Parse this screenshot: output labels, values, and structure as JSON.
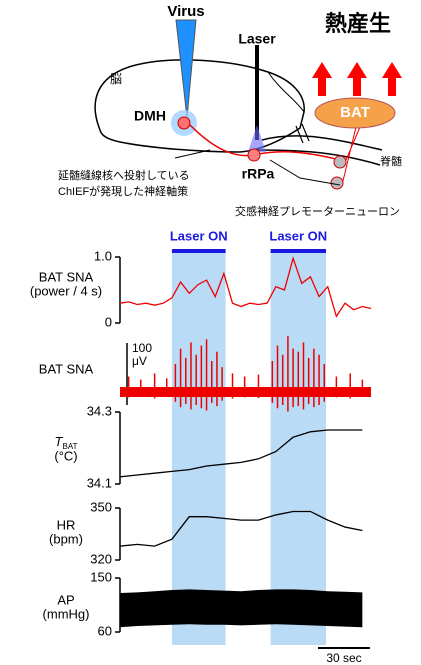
{
  "diagram": {
    "virus": "Virus",
    "laser": "Laser",
    "heat": "熱産生",
    "brain": "脳",
    "dmh": "DMH",
    "bat": "BAT",
    "rrpa": "rRPa",
    "spinal_cord": "脊髄",
    "axon_note": [
      "延髄縫線核へ投射している",
      "ChIEFが発現した神経軸策"
    ],
    "neuron_note": "交感神経プレモーターニューロン"
  },
  "traces": {
    "xlim": [
      0,
      145
    ],
    "laser_label": "Laser ON",
    "laser_on": [
      [
        30,
        61
      ],
      [
        87,
        119
      ]
    ],
    "time_scale": {
      "value": 30,
      "label": "30 sec"
    },
    "panels": [
      {
        "label": [
          "BAT SNA",
          "(power / 4 s)"
        ],
        "ylim": [
          0,
          1
        ],
        "yticks": [
          {
            "value": 1,
            "label": "1.0"
          },
          0
        ],
        "x": [
          0,
          5,
          10,
          15,
          20,
          25,
          30,
          35,
          40,
          45,
          50,
          55,
          60,
          65,
          70,
          75,
          80,
          85,
          90,
          95,
          100,
          105,
          110,
          115,
          120,
          125,
          130,
          135,
          140,
          145
        ],
        "values": [
          0.3,
          0.32,
          0.28,
          0.3,
          0.27,
          0.3,
          0.38,
          0.62,
          0.45,
          0.58,
          0.65,
          0.4,
          0.75,
          0.3,
          0.25,
          0.3,
          0.28,
          0.3,
          0.55,
          0.5,
          0.98,
          0.6,
          0.7,
          0.4,
          0.55,
          0.1,
          0.3,
          0.2,
          0.25,
          0.22
        ]
      },
      {
        "label": [
          "BAT SNA"
        ],
        "scale": {
          "value": 100,
          "label": [
            "100",
            "μV"
          ]
        },
        "x": [
          5,
          12,
          20,
          27,
          32,
          35,
          38,
          41,
          44,
          47,
          50,
          53,
          56,
          59,
          65,
          72,
          80,
          88,
          91,
          94,
          97,
          100,
          103,
          106,
          109,
          112,
          115,
          118,
          125,
          133,
          140
        ],
        "values": [
          25,
          20,
          30,
          22,
          45,
          70,
          55,
          80,
          60,
          75,
          85,
          50,
          65,
          40,
          30,
          25,
          28,
          50,
          75,
          60,
          90,
          70,
          65,
          80,
          55,
          70,
          60,
          45,
          25,
          30,
          20
        ]
      },
      {
        "label": [
          {
            "symbol": "T",
            "subscript": "BAT"
          },
          "(°C)"
        ],
        "ylim": [
          34.1,
          34.3
        ],
        "yticks": [
          34.3,
          34.1
        ],
        "x": [
          0,
          10,
          20,
          30,
          40,
          50,
          60,
          70,
          80,
          90,
          100,
          110,
          120,
          130,
          140
        ],
        "values": [
          34.12,
          34.125,
          34.13,
          34.135,
          34.14,
          34.15,
          34.155,
          34.16,
          34.17,
          34.19,
          34.23,
          34.245,
          34.25,
          34.25,
          34.25
        ]
      },
      {
        "label": [
          "HR",
          "(bpm)"
        ],
        "ylim": [
          320,
          350
        ],
        "yticks": [
          350,
          320
        ],
        "x": [
          0,
          10,
          20,
          30,
          40,
          50,
          60,
          70,
          80,
          90,
          100,
          110,
          120,
          130,
          140
        ],
        "values": [
          328,
          329,
          328,
          332,
          345,
          345,
          344,
          343,
          343,
          346,
          348,
          348,
          343,
          339,
          337
        ]
      },
      {
        "label": [
          "AP",
          "(mmHg)"
        ],
        "ylim": [
          60,
          150
        ],
        "yticks": [
          150,
          60
        ],
        "x": [
          0,
          10,
          20,
          30,
          40,
          50,
          60,
          70,
          80,
          90,
          100,
          110,
          120,
          130,
          140
        ],
        "values_max": [
          125,
          126,
          128,
          130,
          131,
          130,
          129,
          128,
          130,
          131,
          131,
          130,
          128,
          127,
          126
        ],
        "values_min": [
          68,
          70,
          71,
          72,
          73,
          72,
          72,
          71,
          72,
          73,
          72,
          71,
          70,
          69,
          68
        ]
      }
    ]
  }
}
